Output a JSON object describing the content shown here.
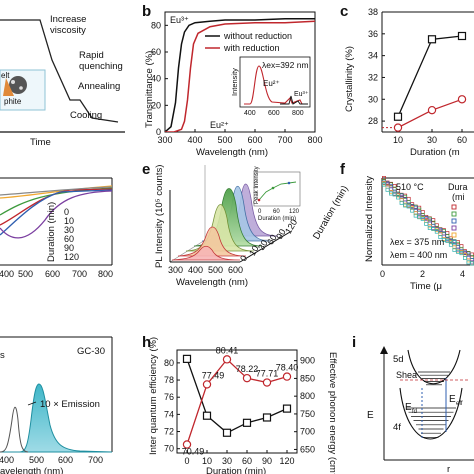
{
  "panels": {
    "a": {
      "letter": "",
      "xlabel": "Time",
      "labels": [
        "Increase",
        "viscosity",
        "Rapid",
        "quenching",
        "Annealing",
        "Cooling"
      ],
      "inset_text": [
        "elt",
        "phite"
      ]
    },
    "b": {
      "letter": "b",
      "xlabel": "Wavelength (nm)",
      "ylabel": "Transmittance (%)",
      "xticks": [
        "300",
        "400",
        "500",
        "600",
        "700",
        "800"
      ],
      "yticks": [
        "0",
        "20",
        "40",
        "60",
        "80"
      ],
      "legend": [
        "without reduction",
        "with reduction"
      ],
      "annotations": [
        "Eu³⁺",
        "Eu²⁺"
      ],
      "inset": {
        "ylabel": "Intensity",
        "xticks": [
          "400",
          "600",
          "800"
        ],
        "lambda": "λex=392 nm",
        "eu2": "Eu²⁺",
        "eu3": "Eu³⁺"
      }
    },
    "c": {
      "letter": "c",
      "ylabel": "Crystallinity (%)",
      "xlabel": "Duration (m",
      "yticks": [
        "28",
        "30",
        "32",
        "34",
        "36",
        "38"
      ],
      "xticks": [
        "10",
        "30",
        "60"
      ]
    },
    "d": {
      "letter": "",
      "xticks": [
        "400",
        "500",
        "600",
        "700",
        "800"
      ],
      "legend_title": "Duration (min)",
      "legend_items": [
        "0",
        "10",
        "30",
        "60",
        "90",
        "120"
      ]
    },
    "e": {
      "letter": "e",
      "ylabel": "PL Intensity (10⁵ counts)",
      "xlabel": "Wavelength (nm)",
      "xticks": [
        "300",
        "400",
        "500",
        "600"
      ],
      "depth_label": "Duration (min)",
      "depth_ticks": [
        "0",
        "10",
        "30",
        "60",
        "90",
        "120"
      ],
      "inset": {
        "ylabel": "Peak Intensity",
        "xlabel": "Duration (min)",
        "xticks": [
          "0",
          "60",
          "120"
        ]
      }
    },
    "f": {
      "letter": "f",
      "ylabel": "Normalized Intensity",
      "xlabel": "Time (μ",
      "temp": "510 °C",
      "legend_title": "Dura",
      "legend_sub": "(mi",
      "ex": "λex = 375 nm",
      "em": "λem = 400 nm",
      "xticks": [
        "0",
        "2",
        "4"
      ]
    },
    "g": {
      "letter": "",
      "tag": "GC-30",
      "emission": "10 × Emission",
      "xlabel": "avelength (nm)",
      "xticks": [
        "400",
        "500",
        "600",
        "700"
      ],
      "frag": "s"
    },
    "h": {
      "letter": "h",
      "ylabel_left": "Inter quantum efficiency (%)",
      "ylabel_right": "Effective phonon energy (cm⁻¹)",
      "xlabel": "Duration (min)",
      "xticks": [
        "0",
        "10",
        "30",
        "60",
        "90",
        "120"
      ],
      "yticks_left": [
        "70",
        "72",
        "74",
        "76",
        "78",
        "80"
      ],
      "yticks_right": [
        "650",
        "700",
        "750",
        "800",
        "850",
        "900"
      ]
    },
    "i": {
      "letter": "i",
      "labels": [
        "5d",
        "4f",
        "E",
        "r",
        "Shea",
        "E",
        "E"
      ],
      "subs": [
        "fd",
        "eff"
      ]
    }
  },
  "chart_data": [
    {
      "type": "line",
      "panel": "b",
      "xlabel": "Wavelength (nm)",
      "ylabel": "Transmittance (%)",
      "xlim": [
        300,
        800
      ],
      "ylim": [
        0,
        90
      ],
      "series": [
        {
          "name": "without reduction",
          "color": "#111111",
          "x": [
            300,
            320,
            335,
            345,
            355,
            365,
            380,
            400,
            450,
            500,
            600,
            700,
            800
          ],
          "y": [
            0,
            4,
            22,
            48,
            66,
            75,
            80,
            82,
            83,
            84,
            84,
            85,
            85
          ]
        },
        {
          "name": "with reduction",
          "color": "#c0272d",
          "x": [
            300,
            330,
            355,
            365,
            375,
            385,
            395,
            410,
            450,
            500,
            600,
            700,
            800
          ],
          "y": [
            0,
            0,
            2,
            8,
            24,
            48,
            66,
            74,
            79,
            81,
            82,
            82,
            83
          ]
        }
      ]
    },
    {
      "type": "line",
      "panel": "c",
      "ylabel": "Crystallinity (%)",
      "ylim": [
        27,
        38
      ],
      "categories": [
        "10",
        "30",
        "60"
      ],
      "series": [
        {
          "color": "#111111",
          "marker": "square",
          "values": [
            28.4,
            35.5,
            35.8
          ]
        },
        {
          "color": "#c0272d",
          "marker": "circle",
          "values": [
            27.4,
            29.0,
            30.0
          ]
        }
      ]
    },
    {
      "type": "line",
      "panel": "h",
      "xlabel": "Duration (min)",
      "categories": [
        "0",
        "10",
        "30",
        "60",
        "90",
        "120"
      ],
      "series": [
        {
          "color": "#111111",
          "marker": "square",
          "axis": "right",
          "values": [
            905,
            745,
            697,
            725,
            740,
            765
          ]
        },
        {
          "color": "#c0272d",
          "marker": "circle",
          "axis": "left",
          "values": [
            70.49,
            77.49,
            80.41,
            78.22,
            77.71,
            78.4
          ],
          "labels": [
            "70.49",
            "77.49",
            "80.41",
            "78.22",
            "77.71",
            "78.40"
          ]
        }
      ],
      "ylim_left": [
        69.5,
        81.5
      ],
      "ylim_right": [
        640,
        930
      ]
    }
  ]
}
